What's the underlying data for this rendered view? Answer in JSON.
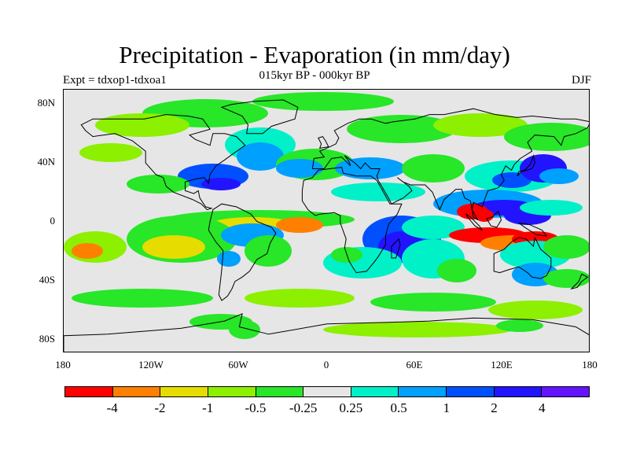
{
  "title": "Precipitation - Evaporation (in mm/day)",
  "subtitle": "015kyr BP - 000kyr BP",
  "left_string": "Expt = tdxop1-tdxoa1",
  "right_string": "DJF",
  "lat_labels": [
    "80N",
    "40N",
    "0",
    "40S",
    "80S"
  ],
  "lon_labels": [
    "180",
    "120W",
    "60W",
    "0",
    "60E",
    "120E",
    "180"
  ],
  "colorbar": {
    "colors": [
      "#ff0000",
      "#ff8000",
      "#e6dc00",
      "#8cf000",
      "#28e628",
      "#e6e6e6",
      "#00f0c8",
      "#00a0ff",
      "#0050ff",
      "#2314ff",
      "#6414ff"
    ],
    "labels": [
      "-4",
      "-2",
      "-1",
      "-0.5",
      "-0.25",
      "0.25",
      "0.5",
      "1",
      "2",
      "4"
    ]
  },
  "map": {
    "land_color": "#000000",
    "ocean_background": "#e6e6e6"
  }
}
